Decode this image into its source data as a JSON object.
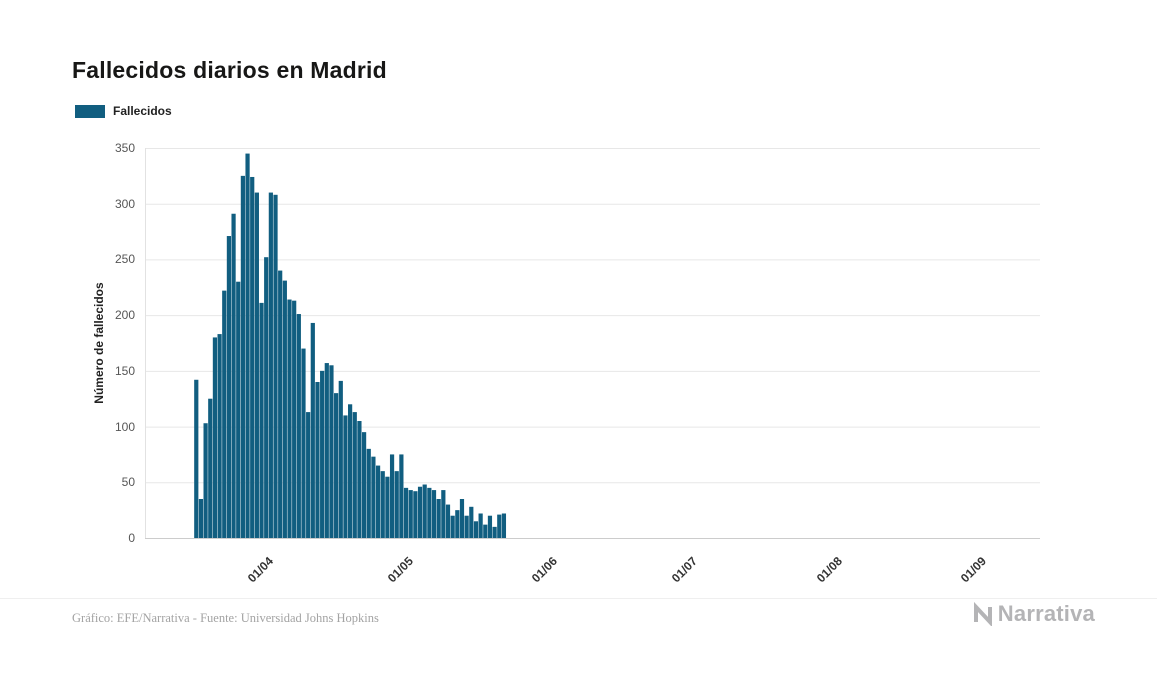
{
  "page": {
    "title": "Fallecidos diarios en Madrid",
    "footer_credit": "Gráfico: EFE/Narrativa - Fuente: Universidad Johns Hopkins",
    "brand": "Narrativa"
  },
  "legend": {
    "label": "Fallecidos",
    "color": "#115e80"
  },
  "chart_data": {
    "type": "bar",
    "title": "Fallecidos diarios en Madrid",
    "series_name": "Fallecidos",
    "xlabel": "",
    "ylabel": "Número de fallecidos",
    "ylim": [
      0,
      350
    ],
    "yticks": [
      0,
      50,
      100,
      150,
      200,
      250,
      300,
      350
    ],
    "xticks": [
      "01/04",
      "01/05",
      "01/06",
      "01/07",
      "01/08",
      "01/09"
    ],
    "x_domain": [
      "08/03",
      "16/09"
    ],
    "grid": "horizontal",
    "legend_position": "top-left",
    "bar_color": "#115e80",
    "dates": [
      "19/03",
      "20/03",
      "21/03",
      "22/03",
      "23/03",
      "24/03",
      "25/03",
      "26/03",
      "27/03",
      "28/03",
      "29/03",
      "30/03",
      "31/03",
      "01/04",
      "02/04",
      "03/04",
      "04/04",
      "05/04",
      "06/04",
      "07/04",
      "08/04",
      "09/04",
      "10/04",
      "11/04",
      "12/04",
      "13/04",
      "14/04",
      "15/04",
      "16/04",
      "17/04",
      "18/04",
      "19/04",
      "20/04",
      "21/04",
      "22/04",
      "23/04",
      "24/04",
      "25/04",
      "26/04",
      "27/04",
      "28/04",
      "29/04",
      "30/04",
      "01/05",
      "02/05",
      "03/05",
      "04/05",
      "05/05",
      "06/05",
      "07/05",
      "08/05",
      "09/05",
      "10/05",
      "11/05",
      "12/05",
      "13/05",
      "14/05",
      "15/05",
      "16/05",
      "17/05",
      "18/05",
      "19/05",
      "20/05",
      "21/05",
      "22/05",
      "23/05",
      "24/05"
    ],
    "values": [
      142,
      35,
      103,
      125,
      180,
      183,
      222,
      271,
      291,
      230,
      325,
      345,
      324,
      310,
      211,
      252,
      310,
      308,
      240,
      231,
      214,
      213,
      201,
      170,
      113,
      193,
      140,
      150,
      157,
      155,
      130,
      141,
      110,
      120,
      113,
      105,
      95,
      80,
      73,
      65,
      60,
      55,
      75,
      60,
      75,
      45,
      43,
      42,
      46,
      48,
      45,
      43,
      35,
      43,
      30,
      20,
      25,
      35,
      20,
      28,
      15,
      22,
      12,
      20,
      10,
      21,
      22
    ]
  }
}
